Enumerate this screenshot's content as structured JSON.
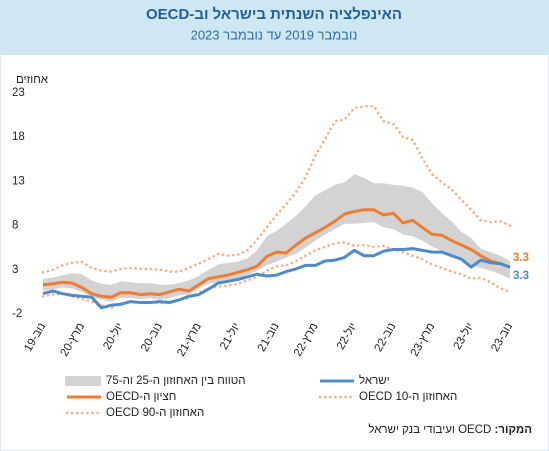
{
  "chart_data": {
    "type": "line",
    "title": "האינפלציה השנתית בישראל וב-OECD",
    "subtitle": "נובמבר 2019 עד נובמבר 2023",
    "y_label": "אחוזים",
    "source_label": "המקור:",
    "source": "OECD ועיבודי בנק ישראל",
    "ylim": [
      -2,
      23
    ],
    "yticks": [
      -2,
      3,
      8,
      13,
      18,
      23
    ],
    "grid": false,
    "categories": [
      "נוב-19",
      null,
      null,
      null,
      "מרץ-20",
      null,
      null,
      null,
      "יול-20",
      null,
      null,
      null,
      "נוב-20",
      null,
      null,
      null,
      "מרץ-21",
      null,
      null,
      null,
      "יול-21",
      null,
      null,
      null,
      "נוב-21",
      null,
      null,
      null,
      "מרץ-22",
      null,
      null,
      null,
      "יול-22",
      null,
      null,
      null,
      "נוב-22",
      null,
      null,
      null,
      "מרץ-23",
      null,
      null,
      null,
      "יול-23",
      null,
      null,
      null,
      "נוב-23"
    ],
    "band": {
      "name": "הטווח בין האחוזון ה-25 וה-75",
      "color": "#d3d3d3",
      "lower": [
        0.6,
        0.8,
        1.0,
        0.9,
        0.5,
        -0.1,
        -0.4,
        -0.6,
        -0.2,
        -0.2,
        -0.3,
        -0.2,
        -0.4,
        -0.2,
        0.1,
        0.2,
        0.9,
        1.4,
        1.6,
        1.8,
        2.0,
        2.4,
        2.9,
        3.5,
        3.9,
        4.4,
        4.8,
        5.5,
        6.3,
        7.0,
        7.6,
        8.2,
        8.2,
        8.3,
        8.4,
        7.8,
        7.6,
        7.0,
        6.8,
        6.3,
        5.6,
        5.1,
        4.6,
        4.1,
        3.5,
        3.2,
        2.9,
        2.5,
        2.0
      ],
      "upper": [
        2.0,
        2.1,
        2.4,
        2.6,
        2.5,
        1.8,
        1.4,
        1.3,
        1.7,
        1.6,
        1.5,
        1.5,
        1.3,
        1.3,
        1.5,
        1.8,
        2.3,
        3.0,
        3.6,
        3.8,
        3.9,
        4.3,
        5.2,
        6.8,
        7.4,
        8.2,
        9.1,
        10.2,
        11.4,
        12.0,
        12.6,
        12.9,
        13.8,
        13.4,
        12.8,
        12.8,
        12.6,
        12.5,
        12.3,
        11.8,
        10.5,
        9.4,
        8.5,
        7.3,
        6.6,
        5.4,
        5.0,
        4.6,
        4.0
      ]
    },
    "series": [
      {
        "name": "ישראל",
        "color": "#4f8bc9",
        "style": "solid",
        "values": [
          0.3,
          0.6,
          0.3,
          0.1,
          0.0,
          -0.1,
          -1.3,
          -1.0,
          -0.9,
          -0.6,
          -0.7,
          -0.7,
          -0.6,
          -0.7,
          -0.4,
          0.0,
          0.2,
          0.8,
          1.5,
          1.7,
          1.9,
          2.2,
          2.5,
          2.3,
          2.4,
          2.8,
          3.1,
          3.5,
          3.5,
          4.0,
          4.1,
          4.4,
          5.2,
          4.6,
          4.6,
          5.1,
          5.3,
          5.3,
          5.4,
          5.2,
          5.0,
          5.0,
          4.6,
          4.2,
          3.3,
          4.1,
          3.8,
          3.7,
          3.3
        ]
      },
      {
        "name": "חציון ה-OECD",
        "color": "#ed7d31",
        "style": "solid",
        "values": [
          1.3,
          1.4,
          1.6,
          1.5,
          1.0,
          0.3,
          0.0,
          -0.1,
          0.4,
          0.4,
          0.2,
          0.3,
          0.2,
          0.5,
          0.8,
          0.6,
          1.3,
          2.0,
          2.2,
          2.4,
          2.7,
          3.0,
          3.4,
          4.5,
          5.0,
          4.9,
          5.8,
          6.6,
          7.2,
          7.8,
          8.5,
          9.3,
          9.6,
          9.8,
          9.8,
          9.2,
          9.4,
          8.3,
          8.6,
          7.8,
          7.0,
          6.9,
          6.3,
          5.8,
          5.3,
          4.6,
          4.0,
          3.7,
          3.3
        ]
      },
      {
        "name": "האחוזון ה-10 OECD",
        "color": "#f4b183",
        "style": "dotted",
        "values": [
          0.0,
          0.2,
          0.3,
          0.0,
          -0.3,
          -0.6,
          -1.0,
          -1.3,
          -0.8,
          -0.6,
          -0.7,
          -0.6,
          -0.8,
          -0.6,
          -0.4,
          -0.2,
          0.4,
          0.9,
          1.1,
          1.2,
          1.4,
          1.8,
          2.2,
          2.9,
          3.4,
          3.5,
          4.0,
          4.6,
          5.2,
          5.6,
          6.0,
          6.1,
          5.7,
          5.8,
          5.6,
          5.7,
          5.3,
          5.0,
          4.6,
          4.2,
          3.6,
          3.2,
          2.8,
          2.5,
          2.0,
          2.1,
          1.6,
          0.9,
          0.5
        ]
      },
      {
        "name": "האחוזון ה-90 OECD",
        "color": "#f4b183",
        "style": "dotted",
        "values": [
          2.7,
          3.0,
          3.5,
          3.8,
          3.9,
          3.2,
          2.9,
          2.8,
          3.1,
          3.2,
          3.1,
          3.1,
          3.0,
          2.8,
          2.8,
          3.2,
          3.7,
          4.2,
          4.8,
          4.6,
          4.7,
          5.2,
          6.4,
          7.8,
          9.2,
          10.4,
          11.8,
          13.5,
          15.9,
          17.8,
          19.8,
          20.0,
          21.3,
          21.5,
          21.5,
          19.8,
          19.5,
          18.0,
          17.7,
          15.6,
          13.8,
          12.9,
          12.1,
          10.9,
          9.8,
          8.6,
          8.4,
          8.5,
          8.0
        ]
      }
    ]
  }
}
